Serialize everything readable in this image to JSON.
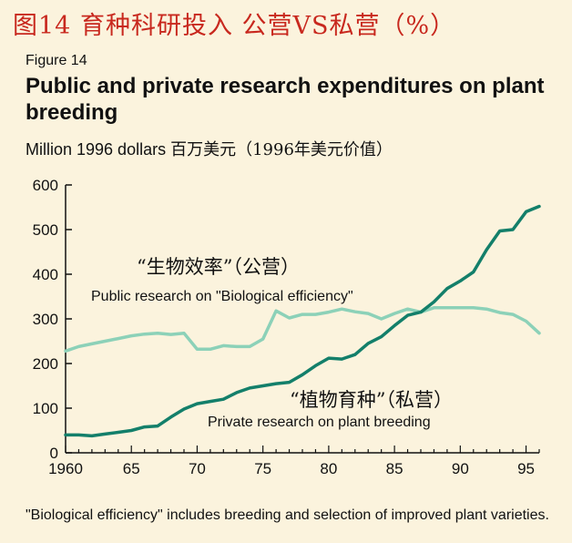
{
  "header": {
    "cn_title": "图14 育种科研投入 公营VS私营（%）",
    "figure_label": "Figure 14",
    "title": "Public and private research expenditures on plant breeding",
    "unit_en": "Million 1996 dollars",
    "unit_cn": "百万美元（1996年美元价值）"
  },
  "footnote": "\"Biological efficiency\" includes breeding and selection of improved plant varieties.",
  "colors": {
    "public": "#8cd1b8",
    "private": "#137f6a",
    "axis": "#111111",
    "background": "#fbf3dd"
  },
  "chart_data": {
    "type": "line",
    "title": "Public and private research expenditures on plant breeding",
    "ylabel": "Million 1996 dollars",
    "xlim": [
      1960,
      1996
    ],
    "ylim": [
      0,
      600
    ],
    "yticks": [
      0,
      100,
      200,
      300,
      400,
      500,
      600
    ],
    "xticks": [
      1960,
      1965,
      1970,
      1975,
      1980,
      1985,
      1990,
      1995
    ],
    "xtick_labels": [
      "1960",
      "65",
      "70",
      "75",
      "80",
      "85",
      "90",
      "95"
    ],
    "grid": false,
    "series": [
      {
        "name": "Public research on \"Biological efficiency\"",
        "name_cn": "“生物效率”（公营）",
        "x": [
          1960,
          1961,
          1962,
          1963,
          1964,
          1965,
          1966,
          1967,
          1968,
          1969,
          1970,
          1971,
          1972,
          1973,
          1974,
          1975,
          1976,
          1977,
          1978,
          1979,
          1980,
          1981,
          1982,
          1983,
          1984,
          1985,
          1986,
          1987,
          1988,
          1989,
          1990,
          1991,
          1992,
          1993,
          1994,
          1995,
          1996
        ],
        "values": [
          228,
          238,
          244,
          250,
          256,
          262,
          266,
          268,
          265,
          268,
          232,
          232,
          240,
          238,
          238,
          255,
          318,
          302,
          310,
          310,
          315,
          322,
          316,
          312,
          300,
          312,
          322,
          315,
          325,
          325,
          325,
          325,
          322,
          314,
          310,
          295,
          268
        ]
      },
      {
        "name": "Private research on plant breeding",
        "name_cn": "“植物育种”（私营）",
        "x": [
          1960,
          1961,
          1962,
          1963,
          1964,
          1965,
          1966,
          1967,
          1968,
          1969,
          1970,
          1971,
          1972,
          1973,
          1974,
          1975,
          1976,
          1977,
          1978,
          1979,
          1980,
          1981,
          1982,
          1983,
          1984,
          1985,
          1986,
          1987,
          1988,
          1989,
          1990,
          1991,
          1992,
          1993,
          1994,
          1995,
          1996
        ],
        "values": [
          40,
          40,
          38,
          42,
          46,
          50,
          58,
          60,
          80,
          98,
          110,
          115,
          120,
          135,
          145,
          150,
          155,
          158,
          175,
          195,
          212,
          210,
          220,
          245,
          260,
          285,
          308,
          315,
          338,
          368,
          385,
          405,
          455,
          497,
          500,
          540,
          552
        ]
      }
    ]
  }
}
